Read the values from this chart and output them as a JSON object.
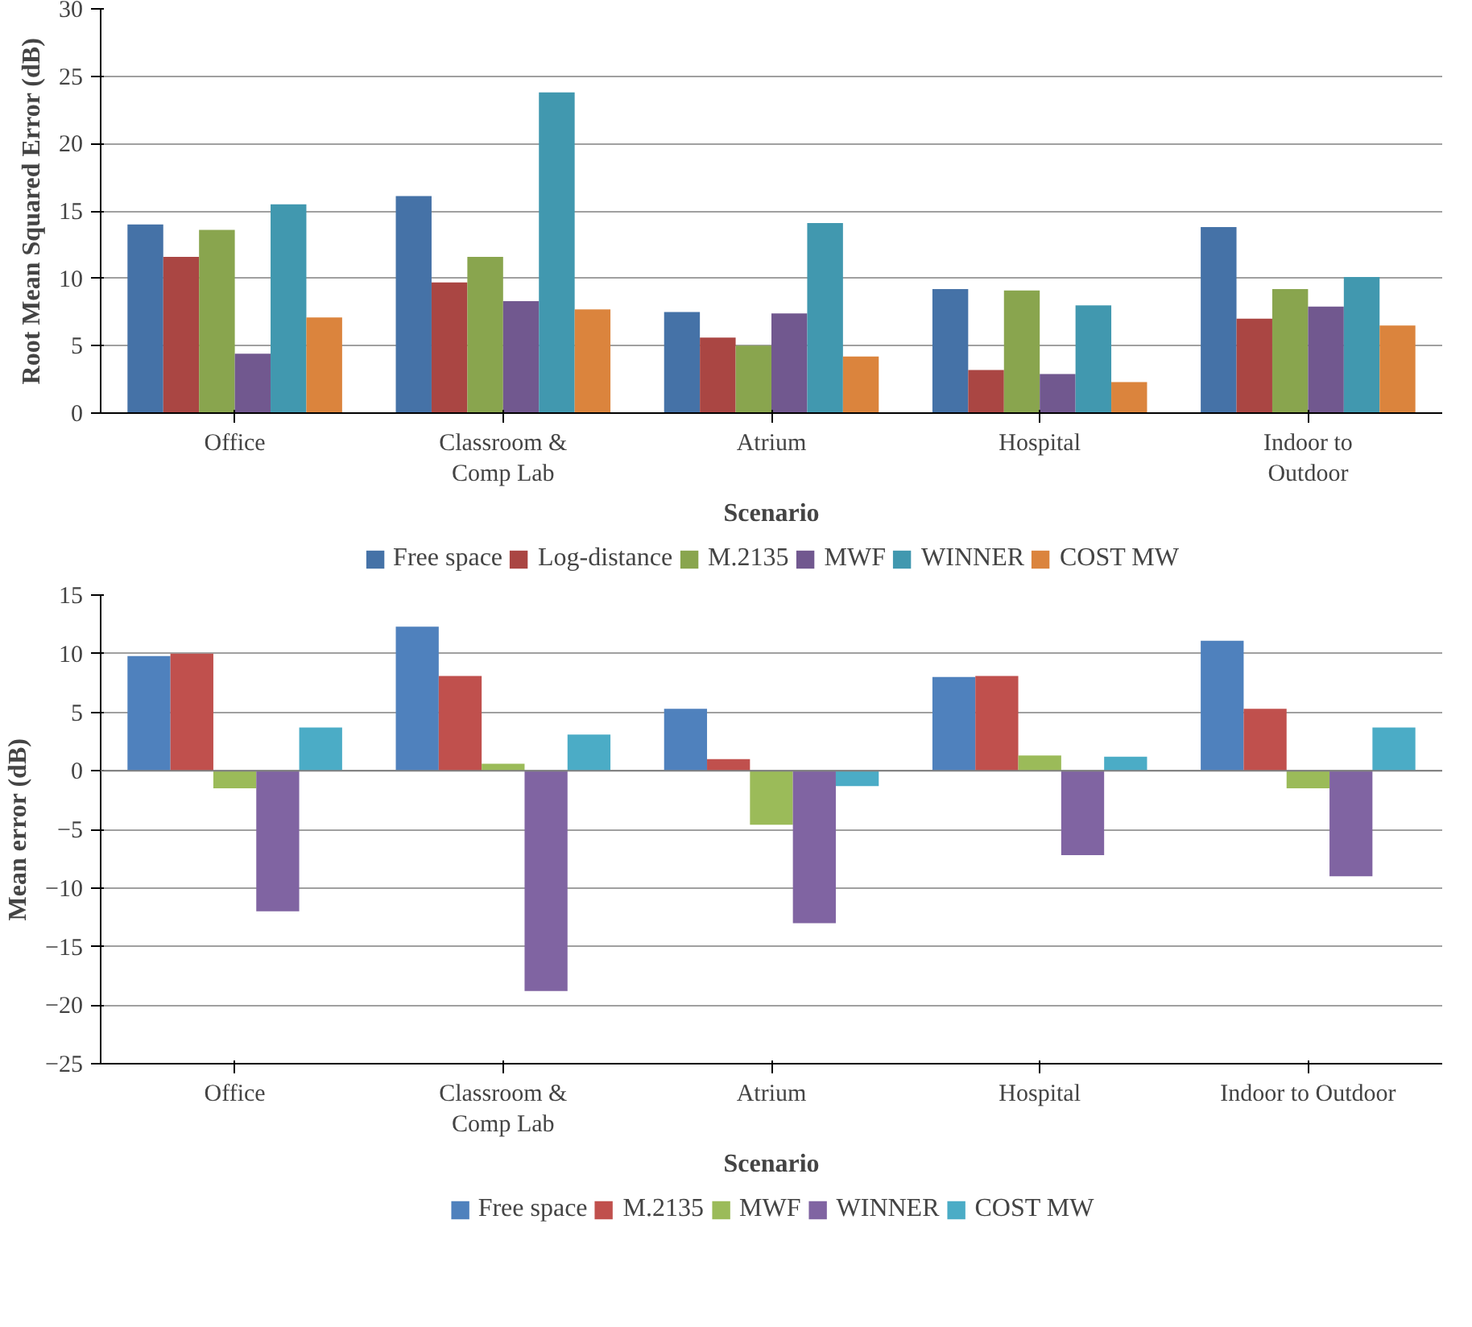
{
  "chart_data": [
    {
      "type": "bar",
      "xlabel": "Scenario",
      "ylabel": "Root Mean Squared Error (dB)",
      "categories": [
        "Office",
        "Classroom &\nComp Lab",
        "Atrium",
        "Hospital",
        "Indoor to\nOutdoor"
      ],
      "series": [
        {
          "name": "Free space",
          "color": "#4572a7",
          "values": [
            14.0,
            16.1,
            7.5,
            9.2,
            13.8
          ]
        },
        {
          "name": "Log-distance",
          "color": "#aa4643",
          "values": [
            11.6,
            9.7,
            5.6,
            3.2,
            7.0
          ]
        },
        {
          "name": "M.2135",
          "color": "#89a54e",
          "values": [
            13.6,
            11.6,
            5.0,
            9.1,
            9.2
          ]
        },
        {
          "name": "MWF",
          "color": "#71588f",
          "values": [
            4.4,
            8.3,
            7.4,
            2.9,
            7.9
          ]
        },
        {
          "name": "WINNER",
          "color": "#4198af",
          "values": [
            15.5,
            23.8,
            14.1,
            8.0,
            10.1
          ]
        },
        {
          "name": "COST MW",
          "color": "#db843d",
          "values": [
            7.1,
            7.7,
            4.2,
            2.3,
            6.5
          ]
        }
      ],
      "ylim": [
        0,
        30
      ],
      "yticks": [
        0,
        5,
        10,
        15,
        20,
        25,
        30
      ],
      "grid": "y",
      "legend": "bottom"
    },
    {
      "type": "bar",
      "xlabel": "Scenario",
      "ylabel": "Mean error (dB)",
      "categories": [
        "Office",
        "Classroom &\nComp Lab",
        "Atrium",
        "Hospital",
        "Indoor to Outdoor"
      ],
      "series": [
        {
          "name": "Free space",
          "color": "#4f81bd",
          "values": [
            9.8,
            12.3,
            5.3,
            8.0,
            11.1
          ]
        },
        {
          "name": "M.2135",
          "color": "#c0504d",
          "values": [
            10.0,
            8.1,
            1.0,
            8.1,
            5.3
          ]
        },
        {
          "name": "MWF",
          "color": "#9bbb59",
          "values": [
            -1.5,
            0.6,
            -4.6,
            1.3,
            -1.5
          ]
        },
        {
          "name": "WINNER",
          "color": "#8064a2",
          "values": [
            -12.0,
            -18.8,
            -13.0,
            -7.2,
            -9.0
          ]
        },
        {
          "name": "COST MW",
          "color": "#4bacc6",
          "values": [
            3.7,
            3.1,
            -1.3,
            1.2,
            3.7
          ]
        }
      ],
      "ylim": [
        -25,
        15
      ],
      "yticks": [
        -25,
        -20,
        -15,
        -10,
        -5,
        0,
        5,
        10,
        15
      ],
      "grid": "y",
      "legend": "bottom"
    }
  ]
}
